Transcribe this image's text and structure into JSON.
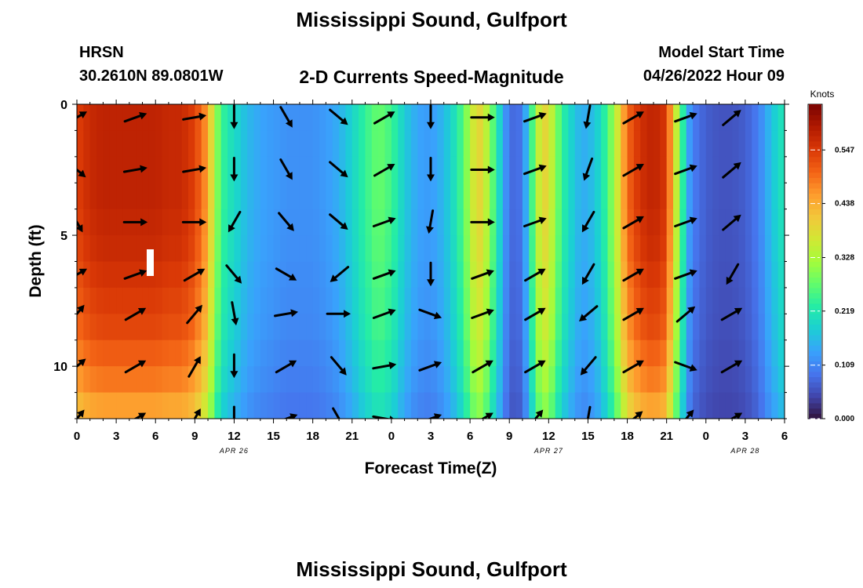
{
  "page": {
    "title": "Mississippi Sound, Gulfport",
    "title_repeat": "Mississippi Sound, Gulfport",
    "station_id": "HRSN",
    "station_coords": "30.2610N  89.0801W",
    "subtitle": "2-D Currents Speed-Magnitude",
    "model_start_label": "Model Start Time",
    "model_start_value": "04/26/2022 Hour 09"
  },
  "chart_data": {
    "type": "heatmap",
    "title": "2-D Currents Speed-Magnitude",
    "xlabel": "Forecast Time(Z)",
    "ylabel": "Depth (ft)",
    "x_unit": "hours since 2022-04-26 00Z",
    "x_range_hours": [
      0,
      54
    ],
    "y_range_ft": [
      0,
      12
    ],
    "y_inverted": true,
    "x_tick_labels": [
      "0",
      "3",
      "6",
      "9",
      "12",
      "15",
      "18",
      "21",
      "0",
      "3",
      "6",
      "9",
      "12",
      "15",
      "18",
      "21",
      "0",
      "3",
      "6"
    ],
    "y_tick_values": [
      0,
      5,
      10
    ],
    "y_tick_labels": [
      "0",
      "5",
      "10"
    ],
    "date_labels": [
      {
        "label": "APR 26",
        "hour": 12
      },
      {
        "label": "APR 27",
        "hour": 36
      },
      {
        "label": "APR 28",
        "hour": 51
      }
    ],
    "colorbar": {
      "unit": "Knots",
      "min": 0,
      "max": 0.64,
      "tick_values": [
        0.0,
        0.109,
        0.219,
        0.328,
        0.438,
        0.547
      ],
      "tick_labels": [
        "0.000",
        "0.109",
        "0.219",
        "0.328",
        "0.438",
        "0.547"
      ],
      "colormap": [
        "#30123b",
        "#4145ab",
        "#4675ed",
        "#39a2fc",
        "#1bcfd4",
        "#24eca6",
        "#61fc6c",
        "#a4fc3b",
        "#d1e834",
        "#f3c63a",
        "#fe9b2d",
        "#f36315",
        "#d93806",
        "#b11901",
        "#7a0402"
      ]
    },
    "depths_ft": [
      0.5,
      1.5,
      2.5,
      3.5,
      4.5,
      5.5,
      6.5,
      7.5,
      8.5,
      9.5,
      10.5,
      11.5
    ],
    "speed_profile": {
      "hours": [
        0,
        1,
        2,
        3,
        4,
        5,
        6,
        7,
        8,
        9,
        10,
        10.5,
        11,
        11.5,
        12,
        13,
        14,
        15,
        16,
        17,
        18,
        19,
        20,
        21,
        22,
        23,
        24,
        25,
        26,
        27,
        28,
        29,
        29.5,
        30,
        30.5,
        31,
        32,
        33,
        34,
        34.5,
        35,
        35.5,
        36,
        37,
        38,
        38.5,
        39,
        40,
        41,
        42,
        43,
        44,
        45,
        45.5,
        46,
        46.5,
        47,
        48,
        49,
        50,
        51,
        52,
        53,
        54
      ],
      "surface_knots": [
        0.54,
        0.57,
        0.58,
        0.58,
        0.58,
        0.58,
        0.58,
        0.57,
        0.57,
        0.54,
        0.45,
        0.33,
        0.25,
        0.22,
        0.2,
        0.16,
        0.14,
        0.13,
        0.12,
        0.12,
        0.12,
        0.13,
        0.15,
        0.19,
        0.24,
        0.28,
        0.25,
        0.18,
        0.14,
        0.13,
        0.16,
        0.22,
        0.27,
        0.33,
        0.4,
        0.38,
        0.23,
        0.08,
        0.09,
        0.2,
        0.31,
        0.4,
        0.38,
        0.24,
        0.17,
        0.15,
        0.15,
        0.2,
        0.32,
        0.5,
        0.56,
        0.58,
        0.55,
        0.4,
        0.3,
        0.16,
        0.1,
        0.07,
        0.06,
        0.06,
        0.07,
        0.1,
        0.17,
        0.22
      ]
    },
    "depth_factor": [
      1.0,
      1.0,
      1.0,
      1.0,
      0.99,
      0.98,
      0.96,
      0.94,
      0.92,
      0.88,
      0.84,
      0.78
    ],
    "arrows": {
      "hours": [
        0,
        4.5,
        9,
        12,
        16,
        20,
        23.5,
        27,
        31,
        35,
        39,
        42.5,
        46.5,
        50
      ],
      "depths_ft": [
        0.5,
        2.5,
        4.5,
        6.5,
        8,
        10,
        12
      ],
      "directions_deg": [
        [
          -30,
          -20,
          -10,
          90,
          60,
          40,
          -30,
          90,
          0,
          -20,
          100,
          -30,
          -20,
          -40
        ],
        [
          40,
          -10,
          -10,
          90,
          60,
          40,
          -30,
          90,
          0,
          -20,
          110,
          -30,
          -20,
          -40
        ],
        [
          60,
          0,
          0,
          120,
          50,
          40,
          -20,
          100,
          0,
          -20,
          120,
          -30,
          -20,
          -40
        ],
        [
          -30,
          -20,
          -30,
          50,
          30,
          140,
          -20,
          90,
          -20,
          -30,
          120,
          -30,
          -20,
          120
        ],
        [
          -50,
          -30,
          -50,
          80,
          -10,
          0,
          -20,
          20,
          -20,
          -30,
          140,
          -30,
          -40,
          -30
        ],
        [
          -40,
          -30,
          -60,
          90,
          -30,
          50,
          -10,
          -20,
          -30,
          -30,
          130,
          -30,
          20,
          -30
        ],
        [
          -50,
          -30,
          -60,
          90,
          -20,
          60,
          10,
          -20,
          -30,
          -50,
          100,
          -40,
          -50,
          -30
        ]
      ]
    }
  }
}
